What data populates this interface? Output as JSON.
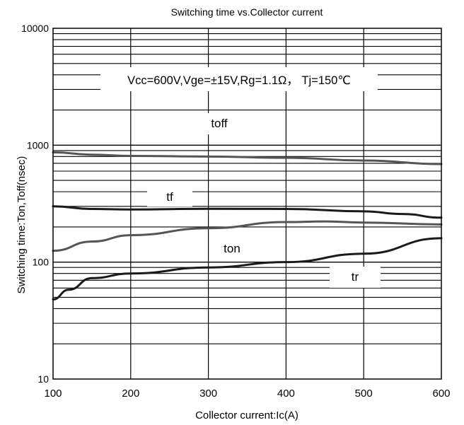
{
  "chart_data": {
    "type": "line",
    "title": "Switching time vs.Collector current",
    "xlabel": "Collector current:Ic(A)",
    "ylabel": "Switching time:Ton,Toff(nsec)",
    "condition": "Vcc=600V,Vge=±15V,Rg=1.1Ω， Tj=150℃",
    "xlim": [
      100,
      600
    ],
    "ylim": [
      10,
      10000
    ],
    "y_scale": "log",
    "grid": true,
    "x_ticks": [
      "100",
      "200",
      "300",
      "400",
      "500",
      "600"
    ],
    "y_ticks": [
      "10",
      "100",
      "1000",
      "10000"
    ],
    "series": [
      {
        "name": "toff",
        "color": "#555555",
        "x": [
          100,
          150,
          200,
          300,
          400,
          500,
          600
        ],
        "y": [
          870,
          830,
          810,
          800,
          780,
          740,
          690
        ]
      },
      {
        "name": "tf",
        "color": "#1a1a1a",
        "x": [
          100,
          150,
          200,
          300,
          400,
          500,
          550,
          600
        ],
        "y": [
          300,
          285,
          282,
          286,
          285,
          272,
          258,
          240
        ]
      },
      {
        "name": "ton",
        "color": "#555555",
        "x": [
          100,
          150,
          200,
          300,
          400,
          450,
          500,
          600
        ],
        "y": [
          125,
          150,
          170,
          195,
          220,
          223,
          218,
          210
        ]
      },
      {
        "name": "tr",
        "color": "#1a1a1a",
        "x": [
          100,
          120,
          150,
          200,
          300,
          400,
          500,
          600
        ],
        "y": [
          48,
          58,
          73,
          80,
          90,
          100,
          118,
          160
        ]
      }
    ]
  }
}
